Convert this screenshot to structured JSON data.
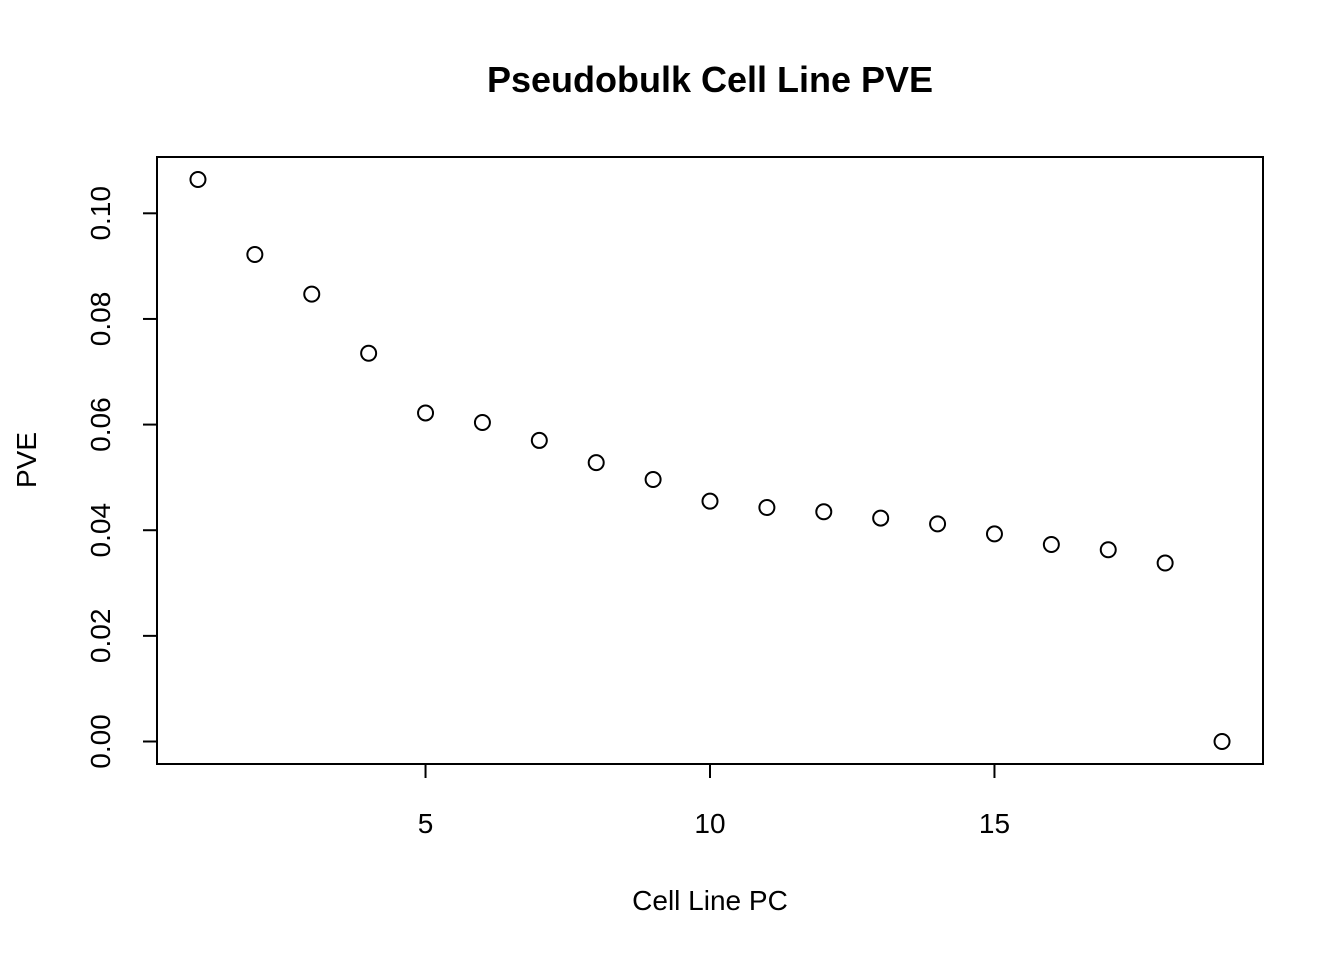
{
  "chart_data": {
    "type": "scatter",
    "title": "Pseudobulk Cell Line PVE",
    "xlabel": "Cell Line PC",
    "ylabel": "PVE",
    "x": [
      1,
      2,
      3,
      4,
      5,
      6,
      7,
      8,
      9,
      10,
      11,
      12,
      13,
      14,
      15,
      16,
      17,
      18,
      19
    ],
    "y": [
      0.1064,
      0.0922,
      0.0847,
      0.0735,
      0.0622,
      0.0604,
      0.057,
      0.0528,
      0.0496,
      0.0455,
      0.0443,
      0.0435,
      0.0423,
      0.0412,
      0.0393,
      0.0373,
      0.0363,
      0.0338,
      0.0
    ],
    "xlim": [
      0.28,
      19.72
    ],
    "ylim": [
      -0.00426,
      0.11066
    ],
    "xticks": [
      5,
      10,
      15
    ],
    "xtick_labels": [
      "5",
      "10",
      "15"
    ],
    "yticks": [
      0.0,
      0.02,
      0.04,
      0.06,
      0.08,
      0.1
    ],
    "ytick_labels": [
      "0.00",
      "0.02",
      "0.04",
      "0.06",
      "0.08",
      "0.10"
    ],
    "marker": "open-circle",
    "grid": false,
    "legend": "none",
    "colors": {
      "points": "#000000",
      "frame": "#000000",
      "background": "#ffffff"
    }
  }
}
